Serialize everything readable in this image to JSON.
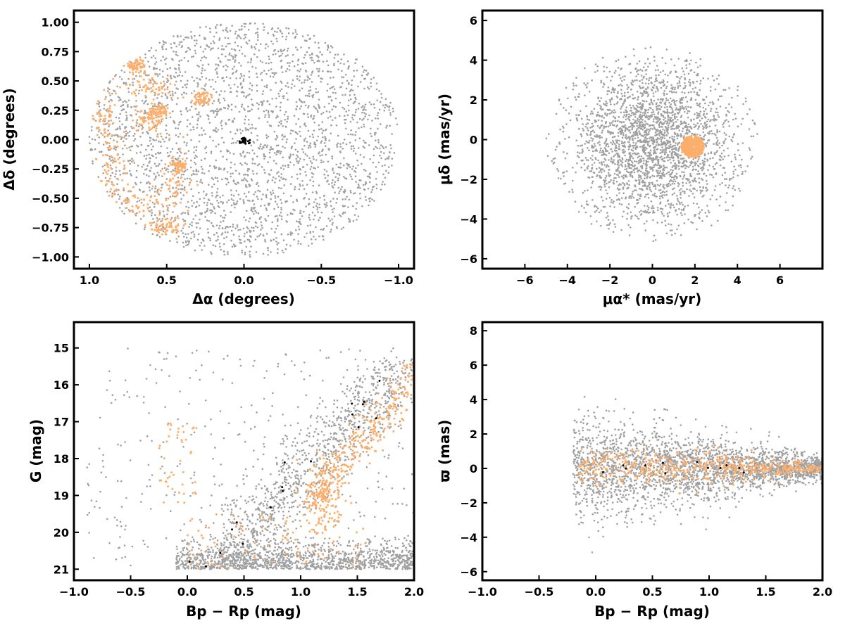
{
  "colors": {
    "field": "#a0a0a0",
    "members": "#fdae6b",
    "core": "#000000",
    "frame": "#000000"
  },
  "chart_data": [
    {
      "id": "sky",
      "type": "scatter",
      "xlabel": "Δα (degrees)",
      "ylabel": "Δδ (degrees)",
      "xlim": [
        1.1,
        -1.1
      ],
      "ylim": [
        -1.1,
        1.1
      ],
      "xticks": [
        1.0,
        0.5,
        0.0,
        -0.5,
        -1.0
      ],
      "xtick_labels": [
        "1.0",
        "0.5",
        "0.0",
        "−0.5",
        "−1.0"
      ],
      "yticks": [
        1.0,
        0.75,
        0.5,
        0.25,
        0.0,
        -0.25,
        -0.5,
        -0.75,
        -1.0
      ],
      "ytick_labels": [
        "1.00",
        "0.75",
        "0.50",
        "0.25",
        "0.00",
        "−0.25",
        "−0.50",
        "−0.75",
        "−1.00"
      ],
      "series": [
        {
          "color_key": "field",
          "distribution": {
            "shape": "ellipse",
            "center": [
              0.0,
              0.0
            ],
            "radius": [
              1.0,
              1.0
            ],
            "n": 2600
          }
        },
        {
          "color_key": "members",
          "distribution": {
            "shape": "clumps",
            "n": 700,
            "clumps": [
              [
                0.9,
                0.2,
                0.05,
                0.15
              ],
              [
                0.85,
                -0.3,
                0.06,
                0.2
              ],
              [
                0.7,
                -0.55,
                0.1,
                0.1
              ],
              [
                0.6,
                0.45,
                0.07,
                0.05
              ],
              [
                0.62,
                0.16,
                0.05,
                0.05
              ],
              [
                0.7,
                0.63,
                0.03,
                0.03
              ],
              [
                0.45,
                -0.35,
                0.05,
                0.15
              ],
              [
                0.27,
                0.35,
                0.03,
                0.03
              ],
              [
                0.5,
                -0.75,
                0.06,
                0.05
              ],
              [
                0.42,
                -0.22,
                0.02,
                0.02
              ],
              [
                0.55,
                0.25,
                0.03,
                0.03
              ]
            ]
          }
        },
        {
          "color_key": "core",
          "distribution": {
            "shape": "gaussian",
            "center": [
              0.0,
              -0.01
            ],
            "sigma": [
              0.02,
              0.015
            ],
            "n": 25
          }
        }
      ]
    },
    {
      "id": "pm",
      "type": "scatter",
      "xlabel": "μα* (mas/yr)",
      "ylabel": "μδ (mas/yr)",
      "xlim": [
        -8,
        8
      ],
      "ylim": [
        -6.5,
        6.5
      ],
      "xticks": [
        -6,
        -4,
        -2,
        0,
        2,
        4,
        6
      ],
      "xtick_labels": [
        "−6",
        "−4",
        "−2",
        "0",
        "2",
        "4",
        "6"
      ],
      "yticks": [
        6,
        4,
        2,
        0,
        -2,
        -4,
        -6
      ],
      "ytick_labels": [
        "6",
        "4",
        "2",
        "0",
        "−2",
        "−4",
        "−6"
      ],
      "series": [
        {
          "color_key": "field",
          "distribution": {
            "shape": "disk_gaussian",
            "center": [
              0.0,
              -0.2
            ],
            "sigma": [
              2.0,
              2.0
            ],
            "radius": 5.0,
            "n": 2600
          }
        },
        {
          "color_key": "members",
          "distribution": {
            "shape": "disk",
            "center": [
              1.9,
              -0.35
            ],
            "radius": 0.55,
            "n": 400
          }
        }
      ]
    },
    {
      "id": "cmd",
      "type": "scatter",
      "xlabel": "Bp − Rp (mag)",
      "ylabel": "G (mag)",
      "xlim": [
        -1.0,
        2.0
      ],
      "ylim": [
        21.3,
        14.3
      ],
      "xticks": [
        -1.0,
        -0.5,
        0.0,
        0.5,
        1.0,
        1.5,
        2.0
      ],
      "xtick_labels": [
        "−1.0",
        "−0.5",
        "0.0",
        "0.5",
        "1.0",
        "1.5",
        "2.0"
      ],
      "yticks": [
        21,
        20,
        19,
        18,
        17,
        16,
        15
      ],
      "ytick_labels": [
        "21",
        "20",
        "19",
        "18",
        "17",
        "16",
        "15"
      ],
      "series": [
        {
          "color_key": "field",
          "distribution": {
            "shape": "cmd_field",
            "n": 2600
          }
        },
        {
          "color_key": "members",
          "distribution": {
            "shape": "cmd_members",
            "n": 600
          }
        },
        {
          "color_key": "core",
          "distribution": {
            "shape": "cmd_core",
            "n": 18
          }
        }
      ]
    },
    {
      "id": "parallax",
      "type": "scatter",
      "xlabel": "Bp − Rp (mag)",
      "ylabel": "ϖ (mas)",
      "xlim": [
        -1.0,
        2.0
      ],
      "ylim": [
        -6.5,
        8.5
      ],
      "xticks": [
        -1.0,
        -0.5,
        0.0,
        0.5,
        1.0,
        1.5,
        2.0
      ],
      "xtick_labels": [
        "−1.0",
        "−0.5",
        "0.0",
        "0.5",
        "1.0",
        "1.5",
        "2.0"
      ],
      "yticks": [
        8,
        6,
        4,
        2,
        0,
        -2,
        -4,
        -6
      ],
      "ytick_labels": [
        "8",
        "6",
        "4",
        "2",
        "0",
        "−2",
        "−4",
        "−6"
      ],
      "series": [
        {
          "color_key": "field",
          "distribution": {
            "shape": "plx_field",
            "n": 2600
          }
        },
        {
          "color_key": "members",
          "distribution": {
            "shape": "plx_members",
            "n": 500
          }
        },
        {
          "color_key": "core",
          "distribution": {
            "shape": "plx_core",
            "n": 12
          }
        }
      ]
    }
  ]
}
